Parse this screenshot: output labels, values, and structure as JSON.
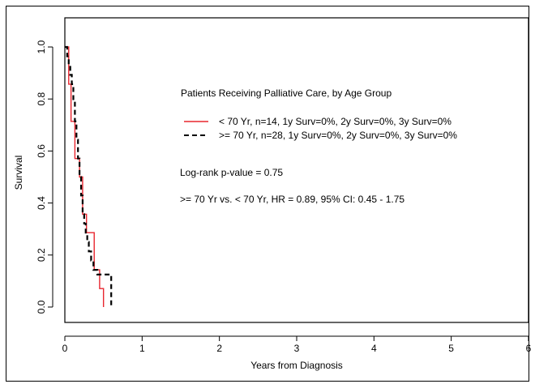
{
  "chart_data": {
    "type": "line",
    "title": "",
    "xlabel": "Years from Diagnosis",
    "ylabel": "Survival",
    "xlim": [
      0,
      6
    ],
    "ylim": [
      0,
      1
    ],
    "x_ticks": [
      "0",
      "1",
      "2",
      "3",
      "4",
      "5",
      "6"
    ],
    "y_ticks": [
      "0.0",
      "0.2",
      "0.4",
      "0.6",
      "0.8",
      "1.0"
    ],
    "grid": false,
    "legend_title": "Patients Receiving Palliative Care, by Age Group",
    "legend_position": "top-right",
    "series": [
      {
        "name": "< 70 Yr, n=14, 1y Surv=0%, 2y Surv=0%, 3y Surv=0%",
        "color": "#e8262f",
        "style": "solid",
        "x": [
          0,
          0.05,
          0.08,
          0.13,
          0.19,
          0.23,
          0.28,
          0.38,
          0.45,
          0.5
        ],
        "y": [
          1.0,
          0.857,
          0.714,
          0.571,
          0.5,
          0.357,
          0.286,
          0.143,
          0.071,
          0.0
        ]
      },
      {
        "name": ">= 70 Yr, n=28, 1y Surv=0%, 2y Surv=0%, 3y Surv=0%",
        "color": "#000000",
        "style": "dashed",
        "x": [
          0,
          0.03,
          0.05,
          0.07,
          0.09,
          0.11,
          0.13,
          0.15,
          0.17,
          0.19,
          0.21,
          0.23,
          0.25,
          0.27,
          0.29,
          0.31,
          0.34,
          0.37,
          0.4,
          0.42,
          0.6
        ],
        "y": [
          1.0,
          0.964,
          0.929,
          0.893,
          0.857,
          0.786,
          0.714,
          0.643,
          0.571,
          0.5,
          0.429,
          0.357,
          0.321,
          0.286,
          0.25,
          0.214,
          0.179,
          0.143,
          0.143,
          0.125,
          0.0
        ]
      }
    ],
    "annotations": [
      "Log-rank p-value = 0.75",
      ">= 70 Yr vs. < 70 Yr, HR = 0.89, 95% CI: 0.45 - 1.75"
    ]
  }
}
